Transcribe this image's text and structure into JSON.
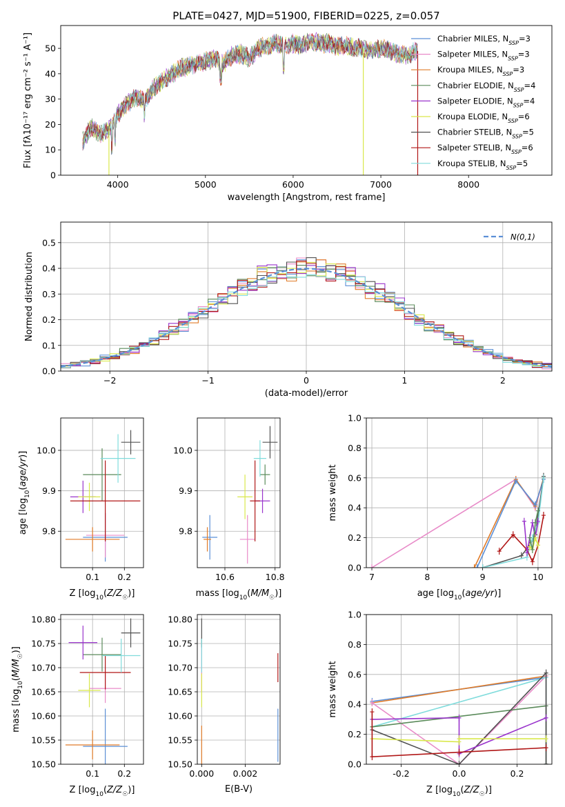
{
  "figure": {
    "title": "PLATE=0427, MJD=51900, FIBERID=0225, z=0.057"
  },
  "colors": {
    "Chabrier MILES": "#5b8fd6",
    "Salpeter MILES": "#e88ac8",
    "Kroupa MILES": "#e07b28",
    "Chabrier ELODIE": "#5a8a5a",
    "Salpeter ELODIE": "#9933cc",
    "Kroupa ELODIE": "#d9e84a",
    "Chabrier STELIB": "#505050",
    "Salpeter STELIB": "#b01515",
    "Kroupa STELIB": "#80dcdc"
  },
  "chart_data": [
    {
      "id": "spectrum",
      "type": "line",
      "xlabel": "wavelength [Angstrom, rest frame]",
      "ylabel": "Flux [fλ10⁻¹⁷ erg cm⁻² s⁻¹ A⁻¹]",
      "xlim": [
        3350,
        8950
      ],
      "ylim": [
        0,
        59
      ],
      "xticks": [
        4000,
        5000,
        6000,
        7000,
        8000
      ],
      "yticks": [
        0,
        10,
        20,
        30,
        40,
        50
      ],
      "grid": false,
      "legend": "upper right",
      "x": [
        3600,
        3700,
        3800,
        3900,
        4000,
        4100,
        4200,
        4300,
        4400,
        4500,
        4600,
        4700,
        4800,
        4900,
        5000,
        5100,
        5200,
        5300,
        5400,
        5500,
        5600,
        5700,
        5800,
        5900,
        6000,
        6100,
        6200,
        6300,
        6400,
        6500,
        6600,
        6700,
        6800,
        6900,
        7000,
        7100,
        7200,
        7300,
        7400
      ],
      "flux": [
        13,
        19,
        16,
        18,
        24,
        28,
        31,
        29,
        34,
        37,
        39,
        42,
        43,
        44,
        45,
        46,
        44,
        47,
        48,
        46,
        50,
        51,
        52,
        51,
        52,
        51,
        53,
        52,
        52,
        51,
        51,
        50,
        50,
        49,
        50,
        49,
        48,
        47,
        49
      ],
      "series": [
        {
          "name": "Chabrier MILES, N_SSP=3",
          "label_main": "Chabrier MILES, N",
          "label_sub": "SSP",
          "label_end": "=3"
        },
        {
          "name": "Salpeter MILES, N_SSP=3",
          "label_main": "Salpeter MILES, N",
          "label_sub": "SSP",
          "label_end": "=3"
        },
        {
          "name": "Kroupa MILES, N_SSP=3",
          "label_main": "Kroupa MILES, N",
          "label_sub": "SSP",
          "label_end": "=3"
        },
        {
          "name": "Chabrier ELODIE, N_SSP=4",
          "label_main": "Chabrier ELODIE, N",
          "label_sub": "SSP",
          "label_end": "=4"
        },
        {
          "name": "Salpeter ELODIE, N_SSP=4",
          "label_main": "Salpeter ELODIE, N",
          "label_sub": "SSP",
          "label_end": "=4"
        },
        {
          "name": "Kroupa ELODIE, N_SSP=6",
          "label_main": "Kroupa ELODIE, N",
          "label_sub": "SSP",
          "label_end": "=6"
        },
        {
          "name": "Chabrier STELIB, N_SSP=5",
          "label_main": "Chabrier STELIB, N",
          "label_sub": "SSP",
          "label_end": "=5"
        },
        {
          "name": "Salpeter STELIB, N_SSP=6",
          "label_main": "Salpeter STELIB, N",
          "label_sub": "SSP",
          "label_end": "=6"
        },
        {
          "name": "Kroupa STELIB, N_SSP=5",
          "label_main": "Kroupa STELIB, N",
          "label_sub": "SSP",
          "label_end": "=5"
        }
      ],
      "drops_to_zero": [
        {
          "series": "Kroupa ELODIE, N_SSP=6",
          "x": 3900
        },
        {
          "series": "Kroupa ELODIE, N_SSP=6",
          "x": 6800
        },
        {
          "series": "Salpeter STELIB, N_SSP=6",
          "x": 7420
        }
      ]
    },
    {
      "id": "residuals",
      "type": "step",
      "xlabel": "(data-model)/error",
      "ylabel": "Normed distribution",
      "xlim": [
        -2.5,
        2.5
      ],
      "ylim": [
        0,
        0.58
      ],
      "xticks": [
        -2,
        -1,
        0,
        1,
        2
      ],
      "yticks": [
        0.0,
        0.1,
        0.2,
        0.3,
        0.4,
        0.5
      ],
      "grid": true,
      "legend": "upper right",
      "reference_label": "N(0,1)",
      "bins": [
        -2.5,
        -2.4,
        -2.3,
        -2.2,
        -2.1,
        -2.0,
        -1.9,
        -1.8,
        -1.7,
        -1.6,
        -1.5,
        -1.4,
        -1.3,
        -1.2,
        -1.1,
        -1.0,
        -0.9,
        -0.8,
        -0.7,
        -0.6,
        -0.5,
        -0.4,
        -0.3,
        -0.2,
        -0.1,
        0.0,
        0.1,
        0.2,
        0.3,
        0.4,
        0.5,
        0.6,
        0.7,
        0.8,
        0.9,
        1.0,
        1.1,
        1.2,
        1.3,
        1.4,
        1.5,
        1.6,
        1.7,
        1.8,
        1.9,
        2.0,
        2.1,
        2.2,
        2.3,
        2.4,
        2.5
      ]
    },
    {
      "id": "age_vs_Z",
      "type": "errorbar",
      "xlabel": "Z [log10(Z/Z☉)]",
      "ylabel": "age [log10(age/yr)]",
      "xlim": [
        0.0,
        0.26
      ],
      "ylim": [
        9.71,
        10.08
      ],
      "xticks": [
        0.1,
        0.2
      ],
      "yticks": [
        9.8,
        9.9,
        10.0
      ],
      "grid": true,
      "points": [
        {
          "series": "Chabrier MILES",
          "x": 0.14,
          "y": 9.785,
          "xerr": 0.07,
          "yerr": 0.06
        },
        {
          "series": "Salpeter MILES",
          "x": 0.14,
          "y": 9.79,
          "xerr": 0.06,
          "yerr": 0.055
        },
        {
          "series": "Kroupa MILES",
          "x": 0.1,
          "y": 9.78,
          "xerr": 0.085,
          "yerr": 0.03
        },
        {
          "series": "Chabrier ELODIE",
          "x": 0.13,
          "y": 9.94,
          "xerr": 0.06,
          "yerr": 0.065
        },
        {
          "series": "Salpeter ELODIE",
          "x": 0.07,
          "y": 9.885,
          "xerr": 0.04,
          "yerr": 0.04
        },
        {
          "series": "Kroupa ELODIE",
          "x": 0.09,
          "y": 9.885,
          "xerr": 0.035,
          "yerr": 0.035
        },
        {
          "series": "Chabrier STELIB",
          "x": 0.22,
          "y": 10.02,
          "xerr": 0.03,
          "yerr": 0.03
        },
        {
          "series": "Salpeter STELIB",
          "x": 0.14,
          "y": 9.875,
          "xerr": 0.11,
          "yerr": 0.1
        },
        {
          "series": "Kroupa STELIB",
          "x": 0.18,
          "y": 9.98,
          "xerr": 0.055,
          "yerr": 0.06
        }
      ]
    },
    {
      "id": "age_vs_mass",
      "type": "errorbar",
      "xlabel": "mass [log10(M/M☉)]",
      "ylabel": "",
      "xlim": [
        10.49,
        10.82
      ],
      "ylim": [
        9.71,
        10.08
      ],
      "xticks": [
        10.6,
        10.8
      ],
      "yticks": [
        9.8,
        9.9,
        10.0
      ],
      "grid": true,
      "points": [
        {
          "series": "Chabrier MILES",
          "x": 10.54,
          "y": 9.785,
          "xerr": 0.03,
          "yerr": 0.055
        },
        {
          "series": "Salpeter MILES",
          "x": 10.69,
          "y": 9.78,
          "xerr": 0.03,
          "yerr": 0.06
        },
        {
          "series": "Kroupa MILES",
          "x": 10.53,
          "y": 9.78,
          "xerr": 0.015,
          "yerr": 0.03
        },
        {
          "series": "Chabrier ELODIE",
          "x": 10.76,
          "y": 9.94,
          "xerr": 0.02,
          "yerr": 0.025
        },
        {
          "series": "Salpeter ELODIE",
          "x": 10.75,
          "y": 9.875,
          "xerr": 0.03,
          "yerr": 0.03
        },
        {
          "series": "Kroupa ELODIE",
          "x": 10.68,
          "y": 9.885,
          "xerr": 0.03,
          "yerr": 0.055
        },
        {
          "series": "Chabrier STELIB",
          "x": 10.78,
          "y": 10.02,
          "xerr": 0.03,
          "yerr": 0.04
        },
        {
          "series": "Salpeter STELIB",
          "x": 10.72,
          "y": 9.875,
          "xerr": 0.02,
          "yerr": 0.1
        },
        {
          "series": "Kroupa STELIB",
          "x": 10.74,
          "y": 9.98,
          "xerr": 0.025,
          "yerr": 0.045
        }
      ]
    },
    {
      "id": "weight_vs_age",
      "type": "line",
      "xlabel": "age [log10(age/yr)]",
      "ylabel": "mass weight",
      "xlim": [
        6.9,
        10.25
      ],
      "ylim": [
        0.0,
        1.0
      ],
      "xticks": [
        7,
        8,
        9,
        10
      ],
      "yticks": [
        0.0,
        0.2,
        0.4,
        0.6,
        0.8,
        1.0
      ],
      "grid": true,
      "series": [
        {
          "series": "Salpeter MILES",
          "x": [
            7.0,
            9.6,
            9.95,
            10.1
          ],
          "y": [
            0.0,
            0.59,
            0.4,
            0.6
          ]
        },
        {
          "series": "Kroupa MILES",
          "x": [
            8.85,
            9.6,
            9.95,
            10.1
          ],
          "y": [
            0.0,
            0.59,
            0.41,
            0.6
          ]
        },
        {
          "series": "Chabrier MILES",
          "x": [
            8.9,
            9.6,
            9.95,
            10.1
          ],
          "y": [
            0.0,
            0.58,
            0.42,
            0.59
          ]
        },
        {
          "series": "Chabrier STELIB",
          "x": [
            9.0,
            9.7,
            9.85,
            9.95,
            10.1
          ],
          "y": [
            0.0,
            0.08,
            0.15,
            0.22,
            0.61
          ]
        },
        {
          "series": "Kroupa STELIB",
          "x": [
            9.0,
            9.8,
            9.9,
            10.0,
            10.1
          ],
          "y": [
            0.0,
            0.07,
            0.2,
            0.3,
            0.6
          ]
        },
        {
          "series": "Salpeter STELIB",
          "x": [
            9.3,
            9.55,
            9.8,
            9.9,
            10.0,
            10.1
          ],
          "y": [
            0.11,
            0.22,
            0.12,
            0.04,
            0.15,
            0.35
          ]
        },
        {
          "series": "Salpeter ELODIE",
          "x": [
            9.75,
            9.8,
            9.9,
            9.95,
            10.0
          ],
          "y": [
            0.31,
            0.1,
            0.3,
            0.2,
            0.31
          ]
        },
        {
          "series": "Kroupa ELODIE",
          "x": [
            9.85,
            9.9,
            9.95,
            10.0
          ],
          "y": [
            0.14,
            0.12,
            0.2,
            0.15
          ]
        },
        {
          "series": "Chabrier ELODIE",
          "x": [
            9.85,
            9.9,
            9.95,
            10.0
          ],
          "y": [
            0.2,
            0.12,
            0.3,
            0.38
          ]
        }
      ]
    },
    {
      "id": "mass_vs_Z",
      "type": "errorbar",
      "xlabel": "Z [log10(Z/Z☉)]",
      "ylabel": "mass [log10(M/M☉)]",
      "xlim": [
        0.0,
        0.26
      ],
      "ylim": [
        10.5,
        10.81
      ],
      "xticks": [
        0.1,
        0.2
      ],
      "yticks": [
        10.5,
        10.55,
        10.6,
        10.65,
        10.7,
        10.75,
        10.8
      ],
      "grid": true,
      "points": [
        {
          "series": "Chabrier MILES",
          "x": 0.14,
          "y": 10.537,
          "xerr": 0.07,
          "yerr": 0.078
        },
        {
          "series": "Salpeter MILES",
          "x": 0.14,
          "y": 10.657,
          "xerr": 0.05,
          "yerr": 0.03
        },
        {
          "series": "Kroupa MILES",
          "x": 0.1,
          "y": 10.54,
          "xerr": 0.085,
          "yerr": 0.03
        },
        {
          "series": "Chabrier ELODIE",
          "x": 0.13,
          "y": 10.727,
          "xerr": 0.06,
          "yerr": 0.035
        },
        {
          "series": "Salpeter ELODIE",
          "x": 0.07,
          "y": 10.752,
          "xerr": 0.045,
          "yerr": 0.035
        },
        {
          "series": "Kroupa ELODIE",
          "x": 0.09,
          "y": 10.653,
          "xerr": 0.035,
          "yerr": 0.035
        },
        {
          "series": "Chabrier STELIB",
          "x": 0.22,
          "y": 10.772,
          "xerr": 0.03,
          "yerr": 0.03
        },
        {
          "series": "Salpeter STELIB",
          "x": 0.14,
          "y": 10.69,
          "xerr": 0.08,
          "yerr": 0.035
        },
        {
          "series": "Kroupa STELIB",
          "x": 0.19,
          "y": 10.725,
          "xerr": 0.06,
          "yerr": 0.035
        }
      ]
    },
    {
      "id": "mass_vs_ebv",
      "type": "errorbar",
      "xlabel": "E(B-V)",
      "ylabel": "",
      "xlim": [
        -0.0002,
        0.0036
      ],
      "ylim": [
        10.5,
        10.81
      ],
      "xticks": [
        0.0,
        0.002
      ],
      "xtick_labels": [
        "0.000",
        "0.002"
      ],
      "yticks": [
        10.5,
        10.55,
        10.6,
        10.65,
        10.7,
        10.75,
        10.8
      ],
      "grid": true,
      "points": [
        {
          "series": "Chabrier MILES",
          "x": 0.0035,
          "y": 10.56,
          "xerr": 0.0,
          "yerr": 0.055
        },
        {
          "series": "Kroupa MILES",
          "x": 0.0,
          "y": 10.54,
          "xerr": 0.0,
          "yerr": 0.04
        },
        {
          "series": "Salpeter MILES",
          "x": 0.0,
          "y": 10.7,
          "xerr": 0.0,
          "yerr": 0.05
        },
        {
          "series": "Chabrier STELIB",
          "x": 0.0,
          "y": 10.772,
          "xerr": 0.0,
          "yerr": 0.03
        },
        {
          "series": "Kroupa STELIB",
          "x": 0.0,
          "y": 10.725,
          "xerr": 0.0,
          "yerr": 0.035
        },
        {
          "series": "Kroupa ELODIE",
          "x": 0.0,
          "y": 10.653,
          "xerr": 0.0,
          "yerr": 0.035
        },
        {
          "series": "Salpeter STELIB",
          "x": 0.0035,
          "y": 10.7,
          "xerr": 0.0,
          "yerr": 0.03
        }
      ]
    },
    {
      "id": "weight_vs_Z",
      "type": "line",
      "xlabel": "Z [log10(Z/Z☉)]",
      "ylabel": "mass weight",
      "xlim": [
        -0.32,
        0.32
      ],
      "ylim": [
        0.0,
        1.0
      ],
      "xticks": [
        -0.2,
        0.0,
        0.2
      ],
      "yticks": [
        0.0,
        0.2,
        0.4,
        0.6,
        0.8,
        1.0
      ],
      "grid": true,
      "series": [
        {
          "series": "Chabrier MILES",
          "x": [
            -0.3,
            0.3,
            0.3
          ],
          "y": [
            0.42,
            0.58,
            0.0
          ]
        },
        {
          "series": "Kroupa MILES",
          "x": [
            -0.3,
            0.3,
            0.3
          ],
          "y": [
            0.41,
            0.59,
            0.0
          ]
        },
        {
          "series": "Salpeter MILES",
          "x": [
            -0.3,
            0.0,
            0.3,
            0.3
          ],
          "y": [
            0.41,
            0.0,
            0.59,
            0.0
          ]
        },
        {
          "series": "Kroupa STELIB",
          "x": [
            -0.3,
            0.3,
            0.3
          ],
          "y": [
            0.25,
            0.58,
            0.0
          ]
        },
        {
          "series": "Chabrier ELODIE",
          "x": [
            -0.3,
            0.3,
            0.3
          ],
          "y": [
            0.25,
            0.39,
            0.0
          ]
        },
        {
          "series": "Chabrier STELIB",
          "x": [
            -0.3,
            0.0,
            0.3,
            0.3
          ],
          "y": [
            0.23,
            0.0,
            0.61,
            0.0
          ]
        },
        {
          "series": "Salpeter ELODIE",
          "x": [
            -0.3,
            0.0,
            0.0,
            0.3
          ],
          "y": [
            0.3,
            0.31,
            0.07,
            0.31
          ]
        },
        {
          "series": "Kroupa ELODIE",
          "x": [
            -0.3,
            0.0,
            0.0,
            0.3
          ],
          "y": [
            0.17,
            0.15,
            0.17,
            0.17
          ]
        },
        {
          "series": "Salpeter STELIB",
          "x": [
            -0.3,
            -0.3,
            0.0,
            0.3
          ],
          "y": [
            0.35,
            0.05,
            0.08,
            0.11
          ]
        }
      ]
    }
  ]
}
